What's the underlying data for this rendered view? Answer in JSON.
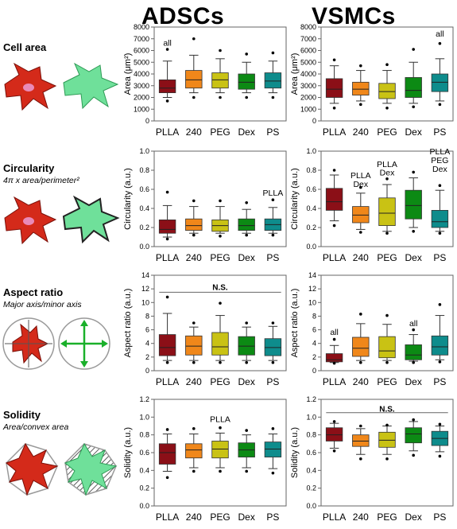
{
  "headers": {
    "left": "ADSCs",
    "right": "VSMCs"
  },
  "rows": [
    {
      "title": "Cell area",
      "subtitle": ""
    },
    {
      "title": "Circularity",
      "subtitle": "4π x area/perimeter²"
    },
    {
      "title": "Aspect ratio",
      "subtitle": "Major axis/minor axis"
    },
    {
      "title": "Solidity",
      "subtitle": "Area/convex area"
    }
  ],
  "colors": [
    "#8b0f17",
    "#f0871a",
    "#c9c214",
    "#0c8a14",
    "#0e8c8c"
  ],
  "chart_data": [
    {
      "type": "box",
      "panel": "ADSCs-cell-area",
      "ylabel": "Area (μm²)",
      "ylim": [
        0,
        8000
      ],
      "yticks": [
        0,
        1000,
        2000,
        3000,
        4000,
        5000,
        6000,
        7000,
        8000
      ],
      "categories": [
        "PLLA",
        "240",
        "PEG",
        "Dex",
        "PS"
      ],
      "boxes": [
        {
          "whislo": 2000,
          "q1": 2400,
          "med": 2800,
          "q3": 3500,
          "whishi": 5100,
          "fliers": [
            1700,
            6100
          ]
        },
        {
          "whislo": 2400,
          "q1": 2800,
          "med": 3500,
          "q3": 4300,
          "whishi": 5600,
          "fliers": [
            2000,
            7000
          ]
        },
        {
          "whislo": 2400,
          "q1": 2800,
          "med": 3500,
          "q3": 4100,
          "whishi": 5300,
          "fliers": [
            2000,
            6000
          ]
        },
        {
          "whislo": 2400,
          "q1": 2700,
          "med": 3300,
          "q3": 4000,
          "whishi": 5000,
          "fliers": [
            2000,
            5700
          ]
        },
        {
          "whislo": 2400,
          "q1": 2800,
          "med": 3400,
          "q3": 4100,
          "whishi": 5100,
          "fliers": [
            2000,
            5800
          ]
        }
      ],
      "annotations": [
        {
          "text": "all",
          "category": "PLLA",
          "y": 6600
        }
      ]
    },
    {
      "type": "box",
      "panel": "VSMCs-cell-area",
      "ylabel": "Area (μm²)",
      "ylim": [
        0,
        8000
      ],
      "yticks": [
        0,
        1000,
        2000,
        3000,
        4000,
        5000,
        6000,
        7000,
        8000
      ],
      "categories": [
        "PLLA",
        "240",
        "PEG",
        "Dex",
        "PS"
      ],
      "boxes": [
        {
          "whislo": 1500,
          "q1": 2000,
          "med": 2700,
          "q3": 3600,
          "whishi": 4700,
          "fliers": [
            1100,
            5200
          ]
        },
        {
          "whislo": 1700,
          "q1": 2200,
          "med": 2700,
          "q3": 3300,
          "whishi": 4300,
          "fliers": [
            1400,
            4700
          ]
        },
        {
          "whislo": 1500,
          "q1": 1900,
          "med": 2500,
          "q3": 3200,
          "whishi": 4300,
          "fliers": [
            1100,
            4800
          ]
        },
        {
          "whislo": 1500,
          "q1": 2000,
          "med": 2600,
          "q3": 3700,
          "whishi": 5000,
          "fliers": [
            1200,
            6100
          ]
        },
        {
          "whislo": 1700,
          "q1": 2500,
          "med": 3300,
          "q3": 4000,
          "whishi": 5300,
          "fliers": [
            1400,
            6600
          ]
        }
      ],
      "annotations": [
        {
          "text": "all",
          "category": "PS",
          "y": 7400
        }
      ]
    },
    {
      "type": "box",
      "panel": "ADSCs-circularity",
      "ylabel": "Circularity (a.u.)",
      "ylim": [
        0,
        1.0
      ],
      "yticks": [
        0.0,
        0.2,
        0.4,
        0.6,
        0.8,
        1.0
      ],
      "categories": [
        "PLLA",
        "240",
        "PEG",
        "Dex",
        "PS"
      ],
      "boxes": [
        {
          "whislo": 0.1,
          "q1": 0.14,
          "med": 0.18,
          "q3": 0.28,
          "whishi": 0.43,
          "fliers": [
            0.08,
            0.57
          ]
        },
        {
          "whislo": 0.14,
          "q1": 0.17,
          "med": 0.22,
          "q3": 0.29,
          "whishi": 0.42,
          "fliers": [
            0.12,
            0.48
          ]
        },
        {
          "whislo": 0.14,
          "q1": 0.16,
          "med": 0.22,
          "q3": 0.28,
          "whishi": 0.42,
          "fliers": [
            0.11,
            0.48
          ]
        },
        {
          "whislo": 0.14,
          "q1": 0.17,
          "med": 0.22,
          "q3": 0.29,
          "whishi": 0.39,
          "fliers": [
            0.12,
            0.46
          ]
        },
        {
          "whislo": 0.14,
          "q1": 0.17,
          "med": 0.23,
          "q3": 0.29,
          "whishi": 0.41,
          "fliers": [
            0.12,
            0.49
          ]
        }
      ],
      "annotations": [
        {
          "text": "PLLA",
          "category": "PS",
          "y": 0.56
        }
      ]
    },
    {
      "type": "box",
      "panel": "VSMCs-circularity",
      "ylabel": "Circularity (a.u.)",
      "ylim": [
        0,
        1.0
      ],
      "yticks": [
        0.0,
        0.2,
        0.4,
        0.6,
        0.8,
        1.0
      ],
      "categories": [
        "PLLA",
        "240",
        "PEG",
        "Dex",
        "PS"
      ],
      "boxes": [
        {
          "whislo": 0.27,
          "q1": 0.38,
          "med": 0.47,
          "q3": 0.61,
          "whishi": 0.75,
          "fliers": [
            0.22,
            0.8
          ]
        },
        {
          "whislo": 0.18,
          "q1": 0.25,
          "med": 0.33,
          "q3": 0.42,
          "whishi": 0.56,
          "fliers": [
            0.15,
            0.62
          ]
        },
        {
          "whislo": 0.16,
          "q1": 0.22,
          "med": 0.35,
          "q3": 0.51,
          "whishi": 0.65,
          "fliers": [
            0.14,
            0.71
          ]
        },
        {
          "whislo": 0.2,
          "q1": 0.29,
          "med": 0.43,
          "q3": 0.59,
          "whishi": 0.72,
          "fliers": [
            0.16,
            0.78
          ]
        },
        {
          "whislo": 0.16,
          "q1": 0.2,
          "med": 0.26,
          "q3": 0.38,
          "whishi": 0.59,
          "fliers": [
            0.14,
            0.64
          ]
        }
      ],
      "annotations": [
        {
          "text": "PLLA",
          "category": "240",
          "y": 0.74
        },
        {
          "text": "Dex",
          "category": "240",
          "y": 0.65
        },
        {
          "text": "PLLA",
          "category": "PEG",
          "y": 0.86
        },
        {
          "text": "Dex",
          "category": "PEG",
          "y": 0.77
        },
        {
          "text": "PLLA",
          "category": "PS",
          "y": 0.99
        },
        {
          "text": "PEG",
          "category": "PS",
          "y": 0.9
        },
        {
          "text": "Dex",
          "category": "PS",
          "y": 0.81
        }
      ]
    },
    {
      "type": "box",
      "panel": "ADSCs-aspect-ratio",
      "ylabel": "Aspect ratio (a.u.)",
      "ylim": [
        0,
        14
      ],
      "yticks": [
        0,
        2,
        4,
        6,
        8,
        10,
        12,
        14
      ],
      "categories": [
        "PLLA",
        "240",
        "PEG",
        "Dex",
        "PS"
      ],
      "boxes": [
        {
          "whislo": 1.5,
          "q1": 2.2,
          "med": 3.4,
          "q3": 5.3,
          "whishi": 8.4,
          "fliers": [
            1.2,
            10.8
          ]
        },
        {
          "whislo": 1.5,
          "q1": 2.3,
          "med": 3.6,
          "q3": 5.1,
          "whishi": 6.4,
          "fliers": [
            1.2,
            7.0
          ]
        },
        {
          "whislo": 1.5,
          "q1": 2.3,
          "med": 3.5,
          "q3": 5.6,
          "whishi": 8.1,
          "fliers": [
            1.2,
            9.9
          ]
        },
        {
          "whislo": 1.5,
          "q1": 2.3,
          "med": 3.6,
          "q3": 5.0,
          "whishi": 6.4,
          "fliers": [
            1.2,
            7.0
          ]
        },
        {
          "whislo": 1.5,
          "q1": 2.2,
          "med": 3.4,
          "q3": 4.7,
          "whishi": 6.5,
          "fliers": [
            1.2,
            7.0
          ]
        }
      ],
      "annotations": [
        {
          "text": "N.S.",
          "category": "PEG",
          "y": 12.2
        }
      ],
      "span_line": 11.5
    },
    {
      "type": "box",
      "panel": "VSMCs-aspect-ratio",
      "ylabel": "Aspect ratio (a.u.)",
      "ylim": [
        0,
        14
      ],
      "yticks": [
        0,
        2,
        4,
        6,
        8,
        10,
        12,
        14
      ],
      "categories": [
        "PLLA",
        "240",
        "PEG",
        "Dex",
        "PS"
      ],
      "boxes": [
        {
          "whislo": 1.2,
          "q1": 1.3,
          "med": 1.6,
          "q3": 2.5,
          "whishi": 3.7,
          "fliers": [
            1.1,
            4.6
          ]
        },
        {
          "whislo": 1.5,
          "q1": 2.1,
          "med": 3.3,
          "q3": 4.9,
          "whishi": 6.9,
          "fliers": [
            1.2,
            8.3
          ]
        },
        {
          "whislo": 1.5,
          "q1": 1.9,
          "med": 2.9,
          "q3": 5.0,
          "whishi": 6.8,
          "fliers": [
            1.2,
            8.1
          ]
        },
        {
          "whislo": 1.4,
          "q1": 1.6,
          "med": 2.3,
          "q3": 3.8,
          "whishi": 5.3,
          "fliers": [
            1.2,
            6.0
          ]
        },
        {
          "whislo": 1.6,
          "q1": 2.3,
          "med": 3.5,
          "q3": 5.1,
          "whishi": 8.1,
          "fliers": [
            1.3,
            9.7
          ]
        }
      ],
      "annotations": [
        {
          "text": "all",
          "category": "PLLA",
          "y": 5.6
        },
        {
          "text": "all",
          "category": "Dex",
          "y": 6.9
        }
      ]
    },
    {
      "type": "box",
      "panel": "ADSCs-solidity",
      "ylabel": "Solidity (a.u.)",
      "ylim": [
        0,
        1.2
      ],
      "yticks": [
        0.0,
        0.2,
        0.4,
        0.6,
        0.8,
        1.0,
        1.2
      ],
      "categories": [
        "PLLA",
        "240",
        "PEG",
        "Dex",
        "PS"
      ],
      "boxes": [
        {
          "whislo": 0.39,
          "q1": 0.47,
          "med": 0.6,
          "q3": 0.7,
          "whishi": 0.81,
          "fliers": [
            0.32,
            0.86
          ]
        },
        {
          "whislo": 0.43,
          "q1": 0.54,
          "med": 0.63,
          "q3": 0.7,
          "whishi": 0.81,
          "fliers": [
            0.39,
            0.87
          ]
        },
        {
          "whislo": 0.43,
          "q1": 0.54,
          "med": 0.64,
          "q3": 0.73,
          "whishi": 0.82,
          "fliers": [
            0.39,
            0.88
          ]
        },
        {
          "whislo": 0.43,
          "q1": 0.55,
          "med": 0.63,
          "q3": 0.71,
          "whishi": 0.8,
          "fliers": [
            0.39,
            0.85
          ]
        },
        {
          "whislo": 0.42,
          "q1": 0.55,
          "med": 0.64,
          "q3": 0.72,
          "whishi": 0.81,
          "fliers": [
            0.37,
            0.87
          ]
        }
      ],
      "annotations": [
        {
          "text": "PLLA",
          "category": "PEG",
          "y": 0.97
        }
      ]
    },
    {
      "type": "box",
      "panel": "VSMCs-solidity",
      "ylabel": "Solidity (a.u.)",
      "ylim": [
        0,
        1.2
      ],
      "yticks": [
        0.0,
        0.2,
        0.4,
        0.6,
        0.8,
        1.0,
        1.2
      ],
      "categories": [
        "PLLA",
        "240",
        "PEG",
        "Dex",
        "PS"
      ],
      "boxes": [
        {
          "whislo": 0.65,
          "q1": 0.73,
          "med": 0.8,
          "q3": 0.88,
          "whishi": 0.93,
          "fliers": [
            0.62,
            0.95
          ]
        },
        {
          "whislo": 0.58,
          "q1": 0.67,
          "med": 0.73,
          "q3": 0.8,
          "whishi": 0.87,
          "fliers": [
            0.53,
            0.9
          ]
        },
        {
          "whislo": 0.58,
          "q1": 0.66,
          "med": 0.74,
          "q3": 0.83,
          "whishi": 0.9,
          "fliers": [
            0.53,
            0.91
          ]
        },
        {
          "whislo": 0.62,
          "q1": 0.71,
          "med": 0.81,
          "q3": 0.88,
          "whishi": 0.95,
          "fliers": [
            0.57,
            0.97
          ]
        },
        {
          "whislo": 0.61,
          "q1": 0.68,
          "med": 0.76,
          "q3": 0.84,
          "whishi": 0.9,
          "fliers": [
            0.56,
            0.92
          ]
        }
      ],
      "annotations": [
        {
          "text": "N.S.",
          "category": "PEG",
          "y": 1.09
        }
      ],
      "span_line": 1.05
    }
  ]
}
